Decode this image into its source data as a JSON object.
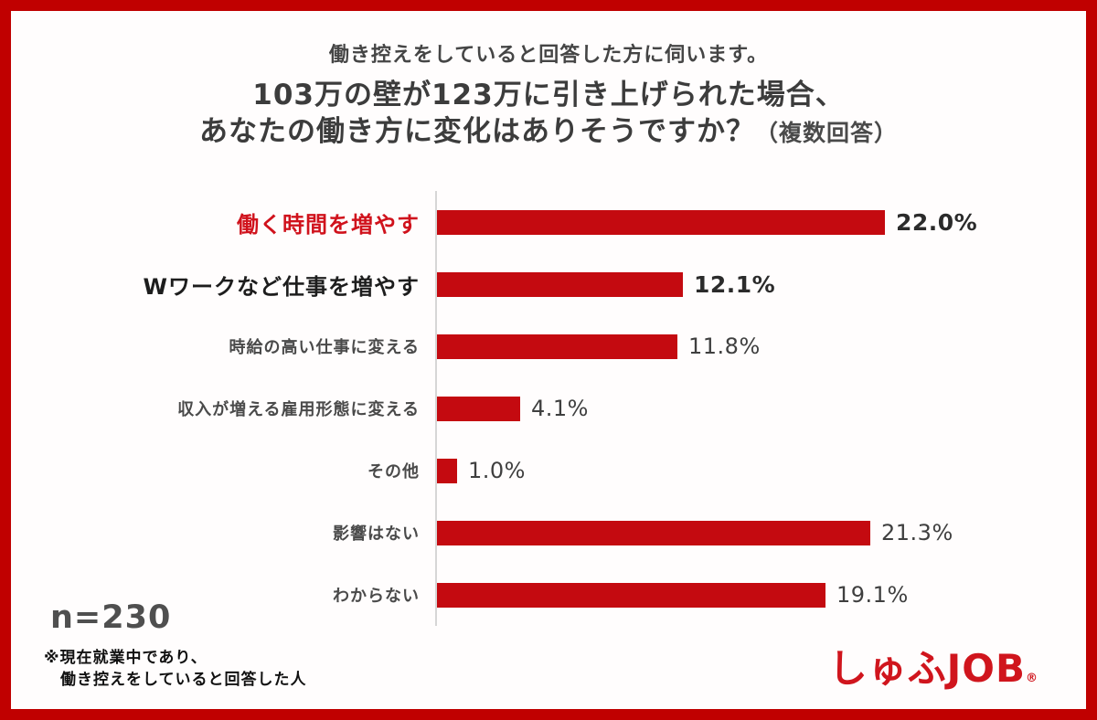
{
  "page": {
    "frame_color": "#c00000",
    "background": "#fffdfd"
  },
  "header": {
    "subtitle": "働き控えをしていると回答した方に伺います。",
    "title_line1": "103万の壁が123万に引き上げられた場合、",
    "title_line2_main": "あなたの働き方に変化はありそうですか？",
    "title_line2_sub": "（複数回答）"
  },
  "chart_data": {
    "type": "bar",
    "orientation": "horizontal",
    "unit": "%",
    "xlim": [
      0,
      22.5
    ],
    "grid": false,
    "bar_color": "#c40a10",
    "categories": [
      "働く時間を増やす",
      "Wワークなど仕事を増やす",
      "時給の高い仕事に変える",
      "収入が増える雇用形態に変える",
      "その他",
      "影響はない",
      "わからない"
    ],
    "values": [
      22.0,
      12.1,
      11.8,
      4.1,
      1.0,
      21.3,
      19.1
    ],
    "rows": [
      {
        "label": "働く時間を増やす",
        "value": 22.0,
        "value_label": "22.0%",
        "emphasis": "red"
      },
      {
        "label": "Wワークなど仕事を増やす",
        "value": 12.1,
        "value_label": "12.1%",
        "emphasis": "black"
      },
      {
        "label": "時給の高い仕事に変える",
        "value": 11.8,
        "value_label": "11.8%",
        "emphasis": "normal"
      },
      {
        "label": "収入が増える雇用形態に変える",
        "value": 4.1,
        "value_label": "4.1%",
        "emphasis": "normal"
      },
      {
        "label": "その他",
        "value": 1.0,
        "value_label": "1.0%",
        "emphasis": "normal"
      },
      {
        "label": "影響はない",
        "value": 21.3,
        "value_label": "21.3%",
        "emphasis": "normal"
      },
      {
        "label": "わからない",
        "value": 19.1,
        "value_label": "19.1%",
        "emphasis": "normal"
      }
    ],
    "sample_size_label": "n=230"
  },
  "footer": {
    "note_line1": "※現在就業中であり、",
    "note_line2": "働き控えをしていると回答した人",
    "logo_text": "しゅふJOB",
    "logo_mark": "®"
  }
}
